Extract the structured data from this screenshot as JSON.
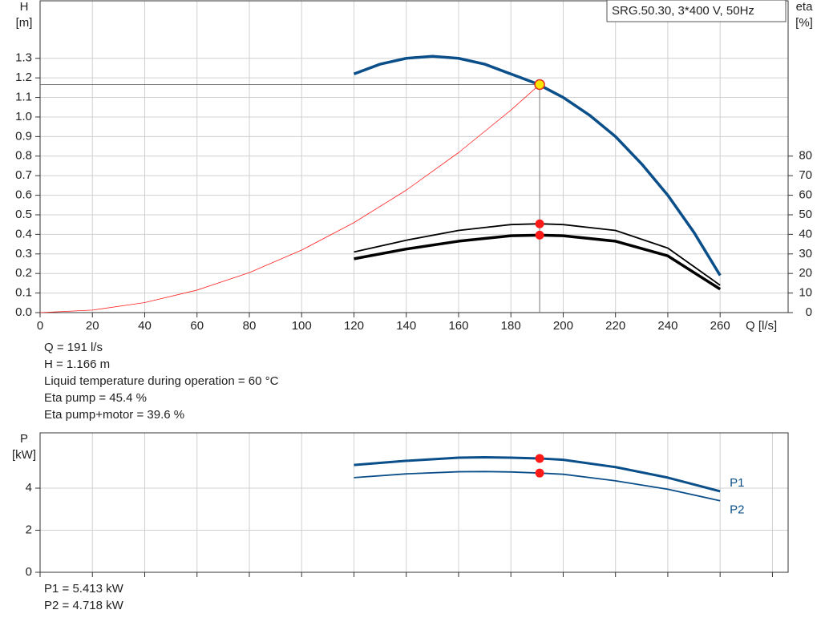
{
  "chart_data": [
    {
      "type": "line",
      "legend_text": "SRG.50.30, 3*400 V, 50Hz",
      "y_label": "H",
      "y_unit": "[m]",
      "y2_label": "eta",
      "y2_unit": "[%]",
      "x_label": "Q [l/s]",
      "xlim": [
        0,
        286
      ],
      "xticks": [
        0,
        20,
        40,
        60,
        80,
        100,
        120,
        140,
        160,
        180,
        200,
        220,
        240,
        260
      ],
      "ylim": [
        0,
        1.594
      ],
      "yticks": [
        {
          "value": 0,
          "label": "0.0"
        },
        0.1,
        0.2,
        0.3,
        0.4,
        0.5,
        0.6,
        0.7,
        0.8,
        0.9,
        {
          "value": 1,
          "label": "1.0"
        },
        1.1,
        1.2,
        1.3
      ],
      "y2lim": [
        0,
        159.4
      ],
      "y2ticks": [
        0,
        10,
        20,
        30,
        40,
        50,
        60,
        70,
        80
      ],
      "grid": true,
      "series": [
        {
          "color": "#0b4f8a",
          "width": 3.5,
          "x": [
            120,
            130,
            140,
            150,
            160,
            170,
            180,
            190,
            200,
            210,
            220,
            230,
            240,
            250,
            260
          ],
          "values": [
            1.22,
            1.27,
            1.3,
            1.31,
            1.3,
            1.27,
            1.22,
            1.17,
            1.1,
            1.01,
            0.9,
            0.76,
            0.6,
            0.41,
            0.19
          ]
        },
        {
          "color": "#ff2020",
          "width": 0.8,
          "x": [
            0,
            20,
            40,
            60,
            80,
            100,
            120,
            140,
            160,
            180,
            191
          ],
          "values": [
            0,
            0.0128,
            0.0511,
            0.115,
            0.2045,
            0.3196,
            0.46,
            0.626,
            0.818,
            1.035,
            1.166
          ]
        },
        {
          "color": "#000000",
          "width": 1.8,
          "axis": "y2",
          "x": [
            120,
            140,
            160,
            180,
            191,
            200,
            220,
            240,
            260
          ],
          "values": [
            31,
            37,
            42,
            45,
            45.4,
            45,
            42,
            33,
            14
          ]
        },
        {
          "color": "#000000",
          "width": 3.5,
          "axis": "y2",
          "x": [
            120,
            140,
            160,
            180,
            191,
            200,
            220,
            240,
            260
          ],
          "values": [
            27.5,
            32.5,
            36.5,
            39.3,
            39.6,
            39.3,
            36.5,
            29,
            12
          ]
        }
      ],
      "operating_point": {
        "x": 191,
        "H": 1.166,
        "eta_pump": 45.4,
        "eta_total": 39.6
      },
      "info": [
        "Q = 191 l/s",
        "H = 1.166 m",
        "Liquid temperature during operation = 60 °C",
        "Eta pump = 45.4 %",
        "Eta pump+motor = 39.6 %"
      ]
    },
    {
      "type": "line",
      "y_label": "P",
      "y_unit": "[kW]",
      "xlim": [
        0,
        286
      ],
      "xticks": [
        0,
        20,
        40,
        60,
        80,
        100,
        120,
        140,
        160,
        180,
        200,
        220,
        240,
        260,
        280
      ],
      "ylim": [
        0,
        6.63
      ],
      "yticks": [
        0,
        2,
        4
      ],
      "grid": true,
      "series": [
        {
          "name": "P1",
          "color": "#0b4f8a",
          "width": 3,
          "x": [
            120,
            140,
            160,
            170,
            180,
            191,
            200,
            220,
            240,
            260
          ],
          "values": [
            5.1,
            5.3,
            5.45,
            5.47,
            5.45,
            5.413,
            5.35,
            5.0,
            4.5,
            3.85
          ]
        },
        {
          "name": "P2",
          "color": "#0b4f8a",
          "width": 1.8,
          "x": [
            120,
            140,
            160,
            170,
            180,
            191,
            200,
            220,
            240,
            260
          ],
          "values": [
            4.5,
            4.68,
            4.78,
            4.79,
            4.77,
            4.718,
            4.66,
            4.35,
            3.95,
            3.4
          ]
        }
      ],
      "operating_point": {
        "x": 191,
        "P1": 5.413,
        "P2": 4.718
      },
      "info": [
        "P1 = 5.413 kW",
        "P2 = 4.718 kW"
      ]
    }
  ]
}
